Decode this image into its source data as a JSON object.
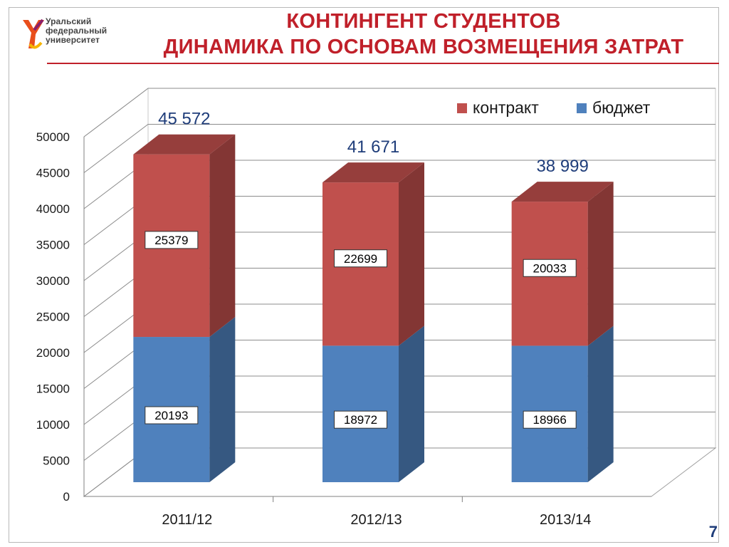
{
  "header": {
    "logo_lines": [
      "Уральский",
      "федеральный",
      "университет"
    ],
    "title_line1": "КОНТИНГЕНТ СТУДЕНТОВ",
    "title_line2": "ДИНАМИКА ПО ОСНОВАМ ВОЗМЕЩЕНИЯ ЗАТРАТ"
  },
  "page_number": "7",
  "chart_data": {
    "type": "bar",
    "stacked": true,
    "three_d": true,
    "categories": [
      "2011/12",
      "2012/13",
      "2013/14"
    ],
    "series": [
      {
        "name": "бюджет",
        "color": "#4f81bd",
        "values": [
          20193,
          18972,
          18966
        ]
      },
      {
        "name": "контракт",
        "color": "#c0504d",
        "values": [
          25379,
          22699,
          20033
        ]
      }
    ],
    "totals_labels": [
      "45 572",
      "41 671",
      "38 999"
    ],
    "value_labels": {
      "бюджет": [
        "20193",
        "18972",
        "18966"
      ],
      "контракт": [
        "25379",
        "22699",
        "20033"
      ]
    },
    "ylim": [
      0,
      50000
    ],
    "yticks": [
      0,
      5000,
      10000,
      15000,
      20000,
      25000,
      30000,
      35000,
      40000,
      45000,
      50000
    ],
    "grid": true,
    "legend_position": "top-right",
    "title": "",
    "xlabel": "",
    "ylabel": ""
  }
}
